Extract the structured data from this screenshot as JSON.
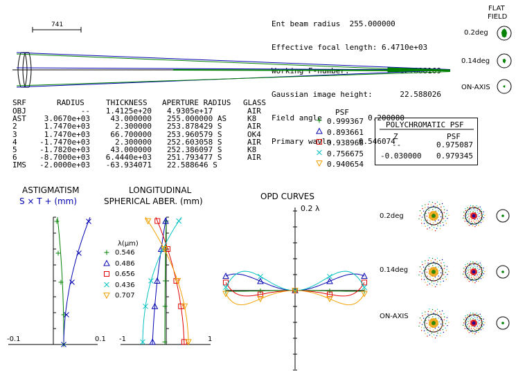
{
  "header": {
    "lines": [
      "Ent beam radius  255.000000",
      "Effective focal length: 6.4710e+03",
      "Working F-number:           12.688169",
      "Gaussian image height:      22.588026",
      "Field angle          0.200000",
      "Primary wavln      0.546074"
    ]
  },
  "scale_bar": {
    "label": "741"
  },
  "field_panel": {
    "title_line1": "FLAT",
    "title_line2": "FIELD",
    "labels": [
      "0.2deg",
      "0.14deg",
      "ON-AXIS"
    ]
  },
  "prescription": {
    "headers": [
      "SRF",
      "RADIUS",
      "THICKNESS",
      "APERTURE RADIUS",
      "GLASS"
    ],
    "rows": [
      [
        "OBJ",
        "--",
        "1.4125e+20",
        "4.9305e+17",
        "AIR"
      ],
      [
        "AST",
        "3.0670e+03",
        "43.000000",
        "255.000000 AS",
        "K8"
      ],
      [
        "2",
        "1.7470e+03",
        "2.300000",
        "253.878429 S",
        "AIR"
      ],
      [
        "3",
        "1.7470e+03",
        "66.700000",
        "253.960579 S",
        "OK4"
      ],
      [
        "4",
        "-1.7470e+03",
        "2.300000",
        "252.603058 S",
        "AIR"
      ],
      [
        "5",
        "-1.7820e+03",
        "43.000000",
        "252.386097 S",
        "K8"
      ],
      [
        "6",
        "-8.7000e+03",
        "6.4440e+03",
        "251.793477 S",
        "AIR"
      ],
      [
        "IMS",
        "-2.0000e+03",
        "-63.934071",
        "22.588646 S",
        ""
      ]
    ]
  },
  "psf": {
    "title": "PSF",
    "values": [
      "0.999367",
      "0.893661",
      "0.938968",
      "0.756675",
      "0.940654"
    ]
  },
  "poly_psf": {
    "title": "POLYCHROMATIC PSF",
    "col_z": "Z",
    "col_psf": "PSF",
    "rows": [
      [
        "--",
        "0.975087"
      ],
      [
        "-0.030000",
        "0.979345"
      ]
    ]
  },
  "astig": {
    "title": "ASTIGMATISM",
    "legend": "S × T + (mm)",
    "axis_min": "-0.1",
    "axis_max": "0.1"
  },
  "longsa": {
    "title1": "LONGITUDINAL",
    "title2": "SPHERICAL ABER. (mm)",
    "axis_min": "-1",
    "axis_max": "1"
  },
  "wavelengths": {
    "title": "λ(μm)",
    "items": [
      {
        "value": "0.546",
        "color": "#008000",
        "marker": "plus"
      },
      {
        "value": "0.486",
        "color": "#0000b0",
        "marker": "triangle"
      },
      {
        "value": "0.656",
        "color": "#e00000",
        "marker": "square"
      },
      {
        "value": "0.436",
        "color": "#00c0c0",
        "marker": "x"
      },
      {
        "value": "0.707",
        "color": "#f0a000",
        "marker": "tri-down"
      }
    ]
  },
  "opd": {
    "title": "OPD CURVES",
    "scale": "0.2 λ"
  },
  "spots": {
    "labels": [
      "0.2deg",
      "0.14deg",
      "ON-AXIS"
    ]
  },
  "colors": {
    "green": "#008000",
    "blue": "#0000b0",
    "red": "#e00000",
    "cyan": "#00c0c0",
    "orange": "#f0a000"
  }
}
